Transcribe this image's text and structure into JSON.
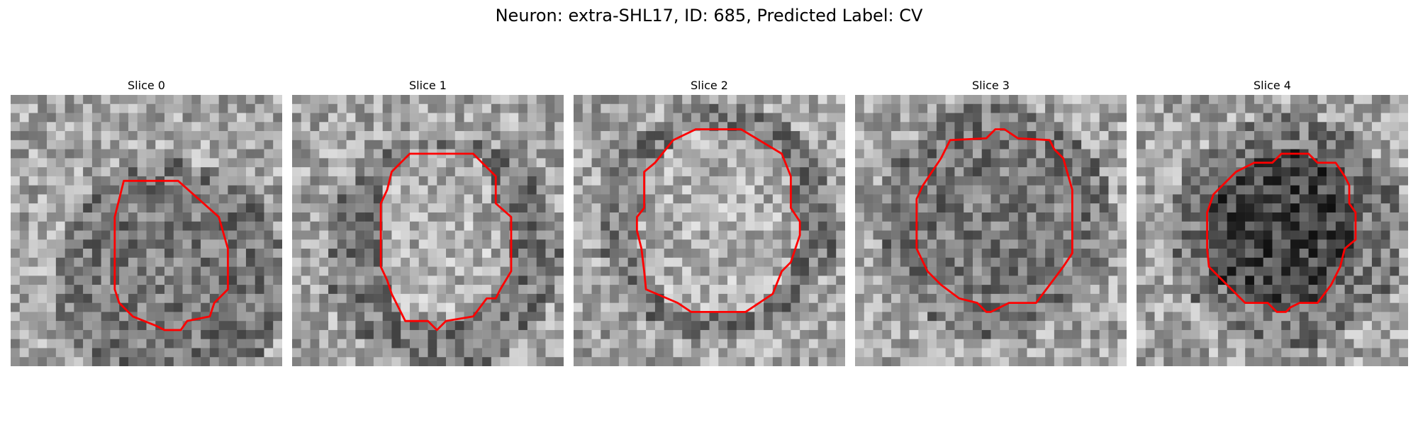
{
  "figure": {
    "title": "Neuron: extra-SHL17, ID: 685, Predicted Label: CV"
  },
  "panels": [
    {
      "title": "Slice 0",
      "seed": 11,
      "outline_color": "#ff0000",
      "interior": "medium"
    },
    {
      "title": "Slice 1",
      "seed": 23,
      "outline_color": "#ff0000",
      "interior": "light"
    },
    {
      "title": "Slice 2",
      "seed": 37,
      "outline_color": "#ff0000",
      "interior": "light"
    },
    {
      "title": "Slice 3",
      "seed": 51,
      "outline_color": "#ff0000",
      "interior": "medium"
    },
    {
      "title": "Slice 4",
      "seed": 67,
      "outline_color": "#ff0000",
      "interior": "dark"
    }
  ]
}
